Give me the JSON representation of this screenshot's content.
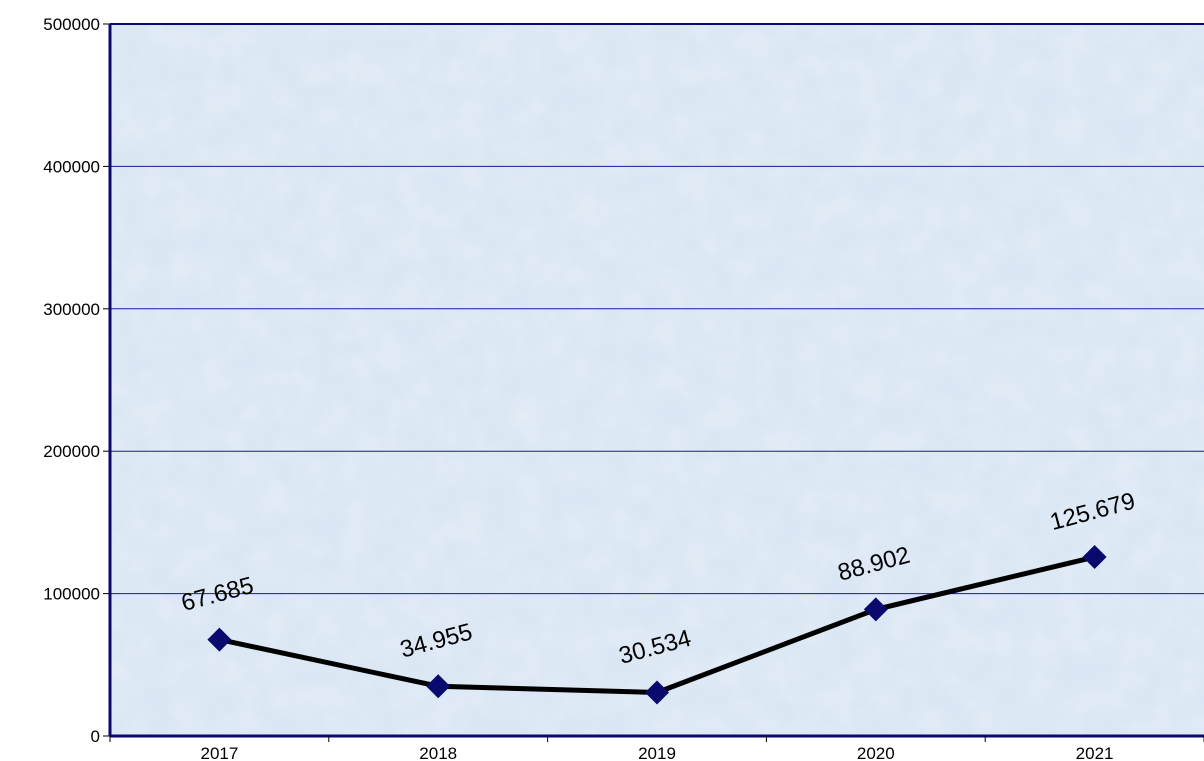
{
  "chart_data": {
    "type": "line",
    "title": "",
    "xlabel": "",
    "ylabel": "",
    "categories": [
      "2017",
      "2018",
      "2019",
      "2020",
      "2021"
    ],
    "series": [
      {
        "values": [
          67685,
          34955,
          30534,
          88902,
          125679
        ],
        "data_labels": [
          "67.685",
          "34.955",
          "30.534",
          "88.902",
          "125.679"
        ],
        "color": "#000000",
        "marker": "diamond",
        "marker_color": "#0a0a6e"
      }
    ],
    "ylim": [
      0,
      500000
    ],
    "yticks": [
      0,
      100000,
      200000,
      300000,
      400000,
      500000
    ],
    "ytick_labels": [
      "0",
      "100000",
      "200000",
      "300000",
      "400000",
      "500000"
    ],
    "grid": true,
    "gridline_color": "#1a1aa0",
    "plot_background": "#dbe7f4",
    "axis_color": "#0a0a6e",
    "legend": "none"
  }
}
